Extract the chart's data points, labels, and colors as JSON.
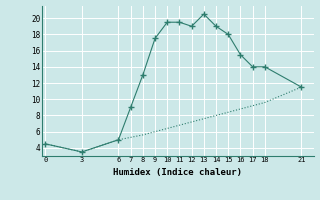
{
  "xlabel": "Humidex (Indice chaleur)",
  "bg_color": "#cce8e8",
  "grid_color": "#b8d8d8",
  "line_color": "#2e7d6e",
  "x_ticks": [
    0,
    3,
    6,
    7,
    8,
    9,
    10,
    11,
    12,
    13,
    14,
    15,
    16,
    17,
    18,
    21
  ],
  "y_ticks": [
    4,
    6,
    8,
    10,
    12,
    14,
    16,
    18,
    20
  ],
  "ylim": [
    3.0,
    21.5
  ],
  "xlim": [
    -0.3,
    22.0
  ],
  "series1_x": [
    0,
    3,
    6,
    7,
    8,
    9,
    10,
    11,
    12,
    13,
    14,
    15,
    16,
    17,
    18,
    21
  ],
  "series1_y": [
    4.5,
    3.5,
    5.0,
    9.0,
    13.0,
    17.5,
    19.5,
    19.5,
    19.0,
    20.5,
    19.0,
    18.0,
    15.5,
    14.0,
    14.0,
    11.5
  ],
  "series2_x": [
    0,
    3,
    6,
    7,
    8,
    9,
    10,
    11,
    12,
    13,
    14,
    15,
    16,
    17,
    18,
    21
  ],
  "series2_y": [
    4.5,
    3.5,
    5.0,
    5.3,
    5.6,
    6.0,
    6.4,
    6.8,
    7.2,
    7.6,
    8.0,
    8.4,
    8.8,
    9.2,
    9.6,
    11.5
  ]
}
